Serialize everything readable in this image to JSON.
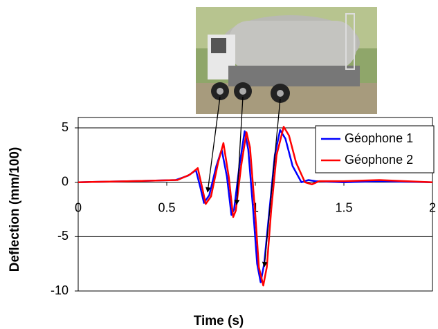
{
  "chart_data": {
    "type": "line",
    "x_label": "Time (s)",
    "y_label": "Deflection (mm/100)",
    "xlim": [
      0,
      2
    ],
    "xticks": [
      0,
      0.5,
      1,
      1.5,
      2
    ],
    "ylim": [
      -10,
      5
    ],
    "yticks": [
      -10,
      -5,
      0,
      5
    ],
    "grid": true,
    "legend": "upper right",
    "series": [
      {
        "name": "Géophone 1",
        "color": "#0000ff",
        "x": [
          0,
          0.3,
          0.55,
          0.62,
          0.665,
          0.69,
          0.71,
          0.74,
          0.78,
          0.81,
          0.84,
          0.865,
          0.88,
          0.91,
          0.94,
          0.96,
          0.99,
          1.01,
          1.03,
          1.05,
          1.08,
          1.11,
          1.14,
          1.17,
          1.21,
          1.26,
          1.3,
          1.34,
          1.5,
          1.7,
          2
        ],
        "values": [
          0,
          0.1,
          0.2,
          0.6,
          1.1,
          -0.5,
          -1.9,
          -1.2,
          1.5,
          3.0,
          0.5,
          -3.0,
          -2.5,
          1.5,
          4.7,
          3.0,
          -3,
          -7.5,
          -9.2,
          -7.5,
          -2.5,
          2.5,
          4.8,
          4,
          1.5,
          0,
          0.2,
          0.1,
          0,
          0.1,
          0
        ]
      },
      {
        "name": "Géophone 2",
        "color": "#ff0000",
        "x": [
          0,
          0.3,
          0.56,
          0.63,
          0.675,
          0.7,
          0.72,
          0.75,
          0.79,
          0.82,
          0.85,
          0.875,
          0.89,
          0.92,
          0.95,
          0.97,
          1.0,
          1.02,
          1.045,
          1.065,
          1.09,
          1.12,
          1.16,
          1.19,
          1.23,
          1.28,
          1.32,
          1.36,
          1.5,
          1.7,
          2
        ],
        "values": [
          0,
          0.1,
          0.2,
          0.7,
          1.3,
          -0.5,
          -2.0,
          -1.3,
          1.8,
          3.6,
          0.5,
          -3.2,
          -2.6,
          1.5,
          4.6,
          3.2,
          -3,
          -7.8,
          -9.5,
          -7.8,
          -2.5,
          2.5,
          5.1,
          4.3,
          1.8,
          0,
          -0.2,
          0.1,
          0.1,
          0.2,
          0
        ]
      }
    ]
  }
}
